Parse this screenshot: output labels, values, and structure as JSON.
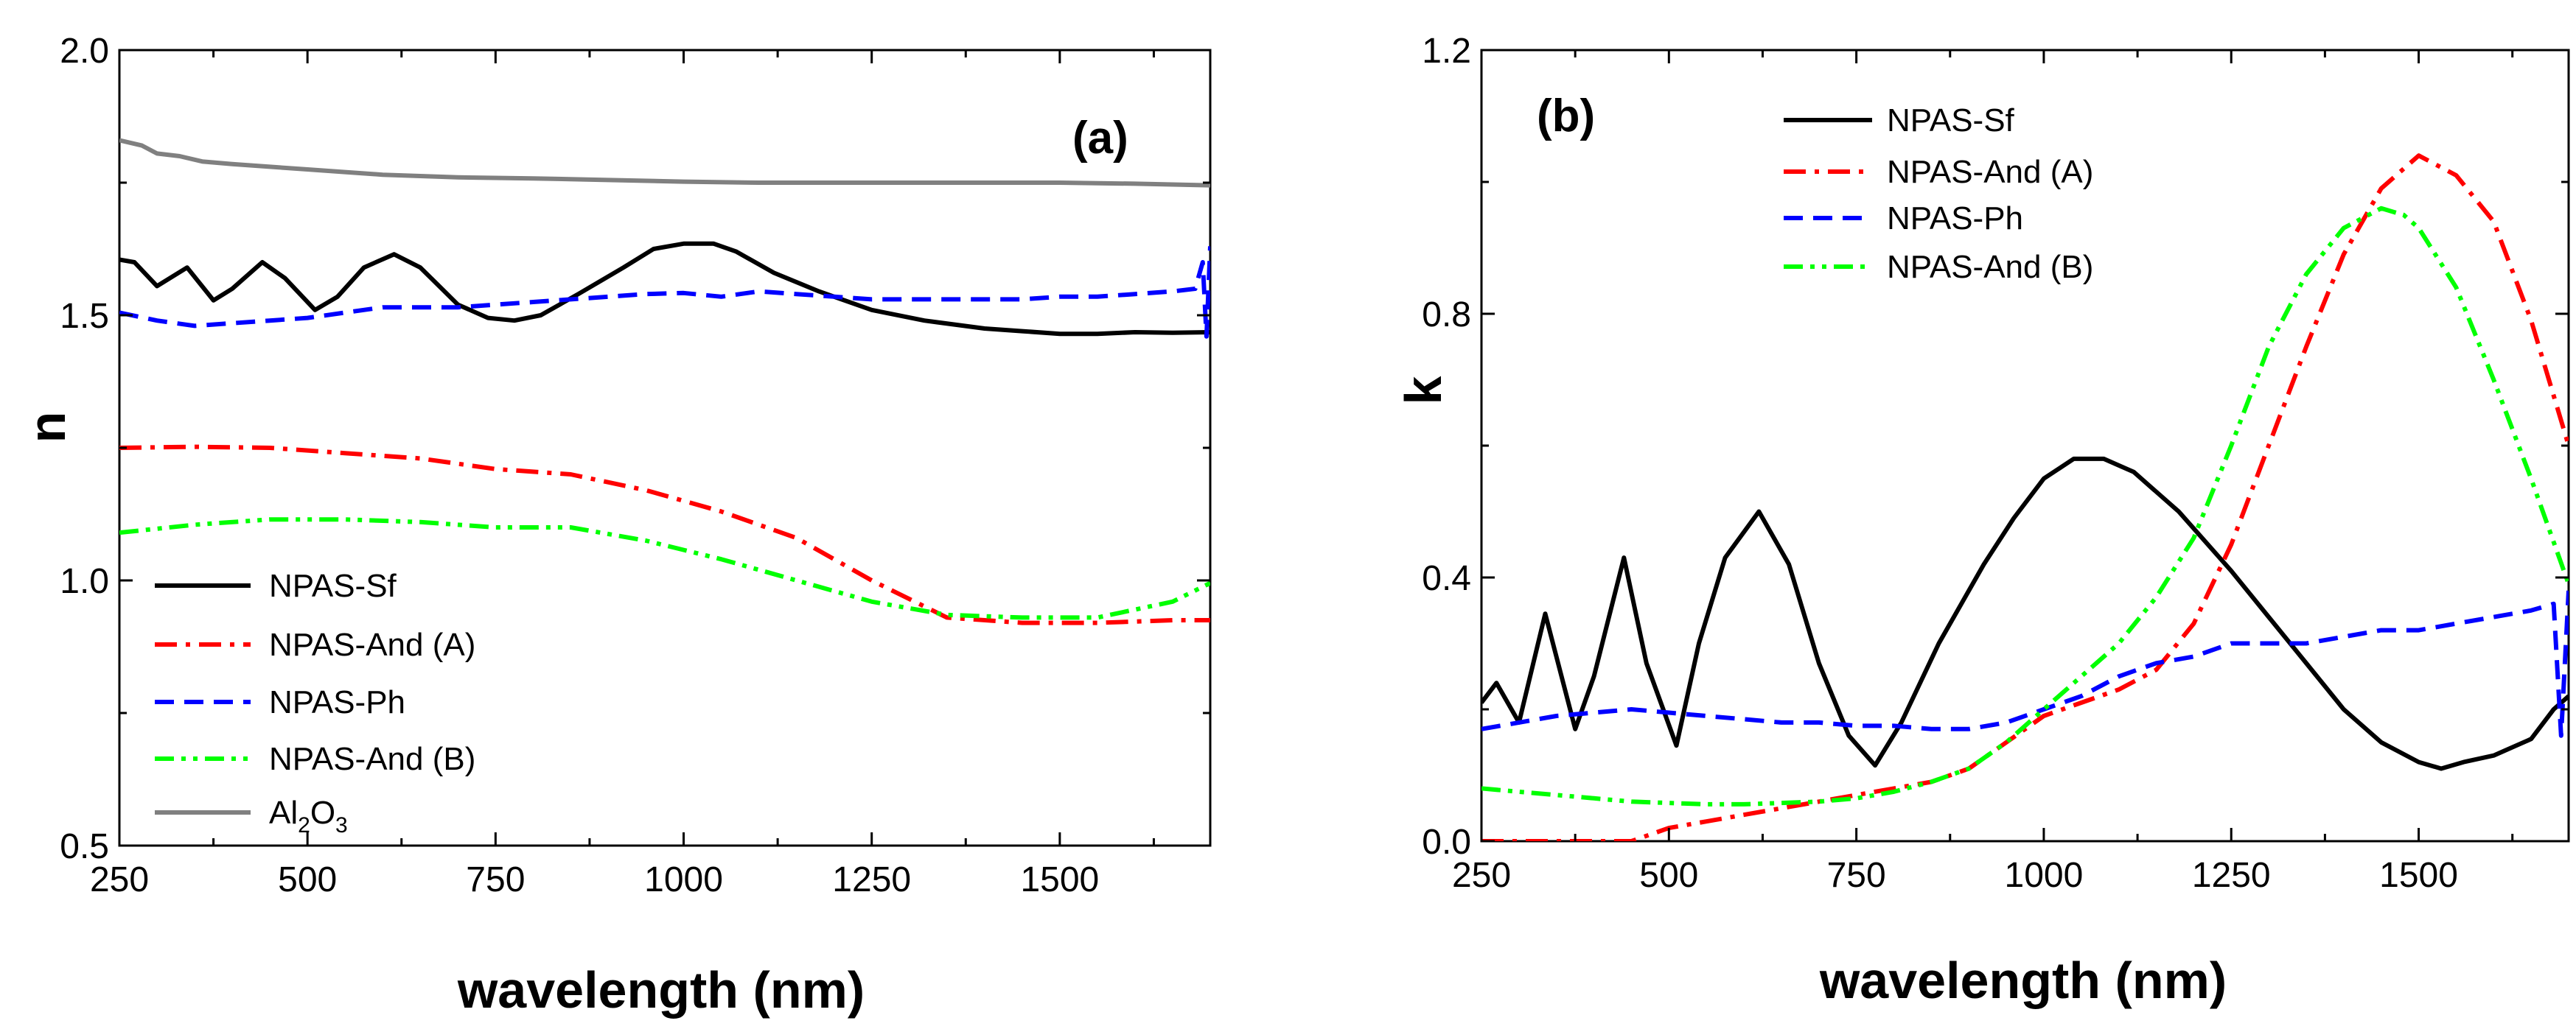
{
  "chart_data": [
    {
      "type": "line",
      "panel_label": "(a)",
      "xlabel": "wavelength (nm)",
      "ylabel": "n",
      "xlim": [
        250,
        1700
      ],
      "ylim": [
        0.5,
        2.0
      ],
      "xticks": [
        250,
        500,
        750,
        1000,
        1250,
        1500
      ],
      "xtick_labels": [
        "250",
        "500",
        "750",
        "1000",
        "1250",
        "1500"
      ],
      "yticks": [
        0.5,
        1.0,
        1.5,
        2.0
      ],
      "ytick_labels": [
        "0.5",
        "1.0",
        "1.5",
        "2.0"
      ],
      "legend_position": "bottom-left",
      "legend": [
        "NPAS-Sf",
        "NPAS-And (A)",
        "NPAS-Ph",
        "NPAS-And (B)",
        "Al2O3"
      ],
      "series": [
        {
          "name": "NPAS-Sf",
          "color": "#000000",
          "dash": "solid",
          "x": [
            250,
            270,
            300,
            340,
            375,
            400,
            440,
            470,
            510,
            540,
            575,
            615,
            650,
            700,
            740,
            775,
            810,
            860,
            920,
            960,
            1000,
            1040,
            1070,
            1120,
            1180,
            1250,
            1320,
            1400,
            1450,
            1500,
            1550,
            1600,
            1650,
            1700
          ],
          "y": [
            1.605,
            1.6,
            1.555,
            1.59,
            1.528,
            1.55,
            1.6,
            1.57,
            1.51,
            1.535,
            1.59,
            1.615,
            1.59,
            1.52,
            1.495,
            1.49,
            1.5,
            1.54,
            1.59,
            1.625,
            1.635,
            1.635,
            1.62,
            1.58,
            1.545,
            1.51,
            1.49,
            1.475,
            1.47,
            1.465,
            1.465,
            1.468,
            1.467,
            1.468
          ]
        },
        {
          "name": "NPAS-And (A)",
          "color": "#ff0000",
          "dash": "dashdot",
          "x": [
            250,
            350,
            450,
            550,
            650,
            750,
            850,
            950,
            1050,
            1150,
            1250,
            1350,
            1450,
            1550,
            1650,
            1700
          ],
          "y": [
            1.25,
            1.252,
            1.25,
            1.24,
            1.23,
            1.21,
            1.2,
            1.17,
            1.13,
            1.08,
            1.0,
            0.93,
            0.92,
            0.92,
            0.925,
            0.925
          ]
        },
        {
          "name": "NPAS-Ph",
          "color": "#0000ff",
          "dash": "dashed",
          "x": [
            250,
            300,
            350,
            400,
            450,
            500,
            550,
            600,
            650,
            700,
            750,
            800,
            850,
            900,
            950,
            1000,
            1050,
            1100,
            1150,
            1200,
            1250,
            1300,
            1350,
            1400,
            1450,
            1500,
            1550,
            1600,
            1650,
            1680,
            1690,
            1695,
            1700
          ],
          "y": [
            1.505,
            1.49,
            1.48,
            1.485,
            1.49,
            1.495,
            1.505,
            1.515,
            1.515,
            1.515,
            1.52,
            1.525,
            1.53,
            1.535,
            1.54,
            1.542,
            1.535,
            1.545,
            1.54,
            1.535,
            1.53,
            1.53,
            1.53,
            1.53,
            1.53,
            1.535,
            1.535,
            1.54,
            1.545,
            1.55,
            1.6,
            1.46,
            1.63
          ]
        },
        {
          "name": "NPAS-And (B)",
          "color": "#00ff00",
          "dash": "dashdotdot",
          "x": [
            250,
            350,
            450,
            550,
            650,
            750,
            850,
            950,
            1050,
            1150,
            1250,
            1350,
            1450,
            1550,
            1650,
            1700
          ],
          "y": [
            1.09,
            1.105,
            1.115,
            1.115,
            1.11,
            1.1,
            1.1,
            1.075,
            1.04,
            1.0,
            0.96,
            0.935,
            0.93,
            0.93,
            0.96,
            0.995
          ]
        },
        {
          "name": "Al2O3",
          "color": "#808080",
          "dash": "solid",
          "x": [
            250,
            280,
            300,
            330,
            360,
            400,
            450,
            500,
            550,
            600,
            700,
            800,
            900,
            1000,
            1100,
            1200,
            1300,
            1400,
            1500,
            1600,
            1700
          ],
          "y": [
            1.83,
            1.82,
            1.805,
            1.8,
            1.79,
            1.785,
            1.78,
            1.775,
            1.77,
            1.765,
            1.76,
            1.758,
            1.755,
            1.752,
            1.75,
            1.75,
            1.75,
            1.75,
            1.75,
            1.748,
            1.745
          ]
        }
      ]
    },
    {
      "type": "line",
      "panel_label": "(b)",
      "xlabel": "wavelength (nm)",
      "ylabel": "k",
      "xlim": [
        250,
        1700
      ],
      "ylim": [
        0.0,
        1.2
      ],
      "xticks": [
        250,
        500,
        750,
        1000,
        1250,
        1500
      ],
      "xtick_labels": [
        "250",
        "500",
        "750",
        "1000",
        "1250",
        "1500"
      ],
      "yticks": [
        0.0,
        0.4,
        0.8,
        1.2
      ],
      "ytick_labels": [
        "0.0",
        "0.4",
        "0.8",
        "1.2"
      ],
      "legend_position": "top-center",
      "legend": [
        "NPAS-Sf",
        "NPAS-And (A)",
        "NPAS-Ph",
        "NPAS-And (B)"
      ],
      "series": [
        {
          "name": "NPAS-Sf",
          "color": "#000000",
          "dash": "solid",
          "x": [
            250,
            270,
            300,
            335,
            375,
            400,
            440,
            470,
            510,
            540,
            575,
            620,
            660,
            700,
            740,
            775,
            810,
            860,
            920,
            960,
            1000,
            1040,
            1080,
            1120,
            1180,
            1250,
            1300,
            1350,
            1400,
            1450,
            1500,
            1530,
            1560,
            1600,
            1650,
            1680,
            1700
          ],
          "y": [
            0.21,
            0.24,
            0.18,
            0.345,
            0.17,
            0.25,
            0.43,
            0.27,
            0.145,
            0.3,
            0.43,
            0.5,
            0.42,
            0.27,
            0.16,
            0.115,
            0.18,
            0.3,
            0.42,
            0.49,
            0.55,
            0.58,
            0.58,
            0.56,
            0.5,
            0.41,
            0.34,
            0.27,
            0.2,
            0.15,
            0.12,
            0.11,
            0.12,
            0.13,
            0.155,
            0.2,
            0.22
          ]
        },
        {
          "name": "NPAS-And (A)",
          "color": "#ff0000",
          "dash": "dashdot",
          "x": [
            250,
            300,
            350,
            400,
            450,
            500,
            550,
            600,
            650,
            700,
            750,
            800,
            850,
            900,
            950,
            1000,
            1050,
            1100,
            1150,
            1200,
            1250,
            1300,
            1350,
            1400,
            1450,
            1500,
            1550,
            1600,
            1650,
            1700
          ],
          "y": [
            0.0,
            0.0,
            0.0,
            0.0,
            0.0,
            0.02,
            0.03,
            0.04,
            0.05,
            0.06,
            0.07,
            0.08,
            0.09,
            0.11,
            0.15,
            0.19,
            0.21,
            0.23,
            0.26,
            0.33,
            0.45,
            0.6,
            0.75,
            0.89,
            0.99,
            1.04,
            1.01,
            0.94,
            0.79,
            0.6
          ]
        },
        {
          "name": "NPAS-Ph",
          "color": "#0000ff",
          "dash": "dashed",
          "x": [
            250,
            300,
            350,
            400,
            450,
            500,
            550,
            600,
            650,
            700,
            750,
            800,
            850,
            900,
            950,
            1000,
            1050,
            1100,
            1150,
            1200,
            1250,
            1300,
            1350,
            1400,
            1450,
            1500,
            1550,
            1600,
            1650,
            1680,
            1690,
            1700
          ],
          "y": [
            0.17,
            0.18,
            0.19,
            0.195,
            0.2,
            0.195,
            0.19,
            0.185,
            0.18,
            0.18,
            0.175,
            0.175,
            0.17,
            0.17,
            0.18,
            0.2,
            0.22,
            0.25,
            0.27,
            0.28,
            0.3,
            0.3,
            0.3,
            0.31,
            0.32,
            0.32,
            0.33,
            0.34,
            0.35,
            0.36,
            0.16,
            0.38
          ]
        },
        {
          "name": "NPAS-And (B)",
          "color": "#00ff00",
          "dash": "dashdotdot",
          "x": [
            250,
            300,
            350,
            400,
            450,
            500,
            550,
            600,
            650,
            700,
            750,
            800,
            850,
            900,
            950,
            1000,
            1050,
            1100,
            1150,
            1200,
            1250,
            1300,
            1350,
            1400,
            1450,
            1480,
            1500,
            1550,
            1600,
            1650,
            1700
          ],
          "y": [
            0.08,
            0.075,
            0.07,
            0.065,
            0.06,
            0.058,
            0.056,
            0.056,
            0.058,
            0.06,
            0.065,
            0.075,
            0.09,
            0.11,
            0.15,
            0.2,
            0.25,
            0.3,
            0.37,
            0.46,
            0.6,
            0.75,
            0.86,
            0.93,
            0.96,
            0.95,
            0.93,
            0.84,
            0.7,
            0.55,
            0.39
          ]
        }
      ]
    }
  ]
}
